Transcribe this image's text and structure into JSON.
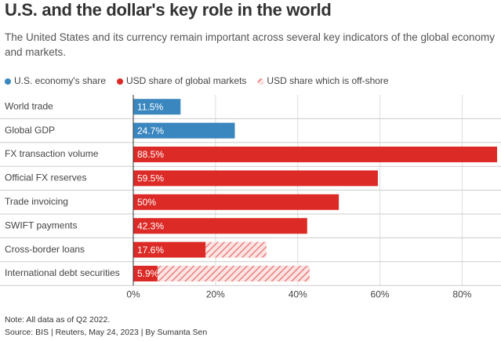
{
  "chart_data": {
    "type": "hbar",
    "stacked": true,
    "title": "U.S. and the dollar's key role in the world",
    "subtitle": "The United States and its currency remain important across several key indicators of the global economy and markets.",
    "categories": [
      "World trade",
      "Global GDP",
      "FX transaction volume",
      "Official FX reserves",
      "Trade invoicing",
      "SWIFT payments",
      "Cross-border loans",
      "International debt securities"
    ],
    "series": [
      {
        "name": "U.S. economy's share",
        "color": "#3a87c0",
        "hatched": false,
        "values": [
          11.5,
          24.7,
          null,
          null,
          null,
          null,
          null,
          null
        ],
        "value_labels": [
          "11.5%",
          "24.7%",
          null,
          null,
          null,
          null,
          null,
          null
        ]
      },
      {
        "name": "USD share of global markets",
        "color": "#dc2b27",
        "hatched": false,
        "values": [
          null,
          null,
          88.5,
          59.5,
          50,
          42.3,
          17.6,
          5.9
        ],
        "value_labels": [
          null,
          null,
          "88.5%",
          "59.5%",
          "50%",
          "42.3%",
          "17.6%",
          "5.9%"
        ]
      },
      {
        "name": "USD share which is off-shore",
        "color": "#e8807d",
        "hatched": true,
        "values": [
          null,
          null,
          null,
          null,
          null,
          null,
          14.8,
          37
        ]
      }
    ],
    "xlim": [
      0,
      88.5
    ],
    "xticks": [
      {
        "value": 0,
        "label": "0%"
      },
      {
        "value": 20,
        "label": "20%"
      },
      {
        "value": 40,
        "label": "40%"
      },
      {
        "value": 60,
        "label": "60%"
      },
      {
        "value": 80,
        "label": "80%"
      }
    ],
    "grid": true,
    "note": "Note: All data as of Q2 2022.",
    "source": "Source: BIS | Reuters, May 24, 2023 | By Sumanta Sen"
  }
}
